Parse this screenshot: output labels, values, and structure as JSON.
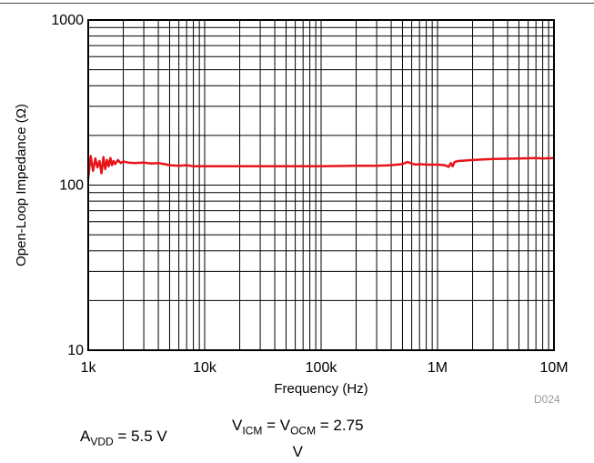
{
  "chart_data": {
    "type": "line",
    "xscale": "log",
    "yscale": "log",
    "xlim": [
      1000,
      10000000
    ],
    "ylim": [
      10,
      1000
    ],
    "xlabel": "Frequency (Hz)",
    "ylabel": "Open-Loop Impedance (Ω)",
    "x_ticks": [
      {
        "value": 1000,
        "label": "1k"
      },
      {
        "value": 10000,
        "label": "10k"
      },
      {
        "value": 100000,
        "label": "100k"
      },
      {
        "value": 1000000,
        "label": "1M"
      },
      {
        "value": 10000000,
        "label": "10M"
      }
    ],
    "y_ticks": [
      {
        "value": 10,
        "label": "10"
      },
      {
        "value": 100,
        "label": "100"
      },
      {
        "value": 1000,
        "label": "1000"
      }
    ],
    "grid": true,
    "series": [
      {
        "color": "#e8141b",
        "x": [
          1000,
          1050,
          1100,
          1150,
          1200,
          1250,
          1300,
          1350,
          1400,
          1450,
          1500,
          1550,
          1600,
          1650,
          1700,
          1800,
          1900,
          2000,
          2200,
          2500,
          3000,
          3500,
          4000,
          4500,
          5000,
          6000,
          7000,
          8000,
          10000,
          15000,
          20000,
          30000,
          50000,
          100000,
          200000,
          300000,
          400000,
          500000,
          550000,
          600000,
          650000,
          700000,
          800000,
          1000000,
          1150000,
          1250000,
          1300000,
          1350000,
          1400000,
          1500000,
          2000000,
          3000000,
          5000000,
          7000000,
          8000000,
          10000000
        ],
        "y": [
          110,
          150,
          122,
          145,
          128,
          140,
          118,
          148,
          125,
          142,
          130,
          146,
          132,
          140,
          134,
          142,
          136,
          139,
          137,
          136,
          137,
          135,
          136,
          134,
          132,
          131,
          132,
          130,
          130,
          130,
          130,
          130,
          130,
          130,
          131,
          131,
          132,
          134,
          138,
          135,
          133,
          134,
          133,
          133,
          132,
          129,
          136,
          130,
          138,
          140,
          142,
          144,
          145,
          146,
          145,
          146
        ]
      }
    ]
  },
  "code": "D024",
  "conditions": {
    "avdd": {
      "main": "A",
      "sub": "VDD",
      "rest": " = 5.5 V"
    },
    "vicm": {
      "main1": "V",
      "sub1": "ICM",
      "mid": " = V",
      "sub2": "OCM",
      "rest": " = 2.75",
      "line2": "V"
    }
  }
}
